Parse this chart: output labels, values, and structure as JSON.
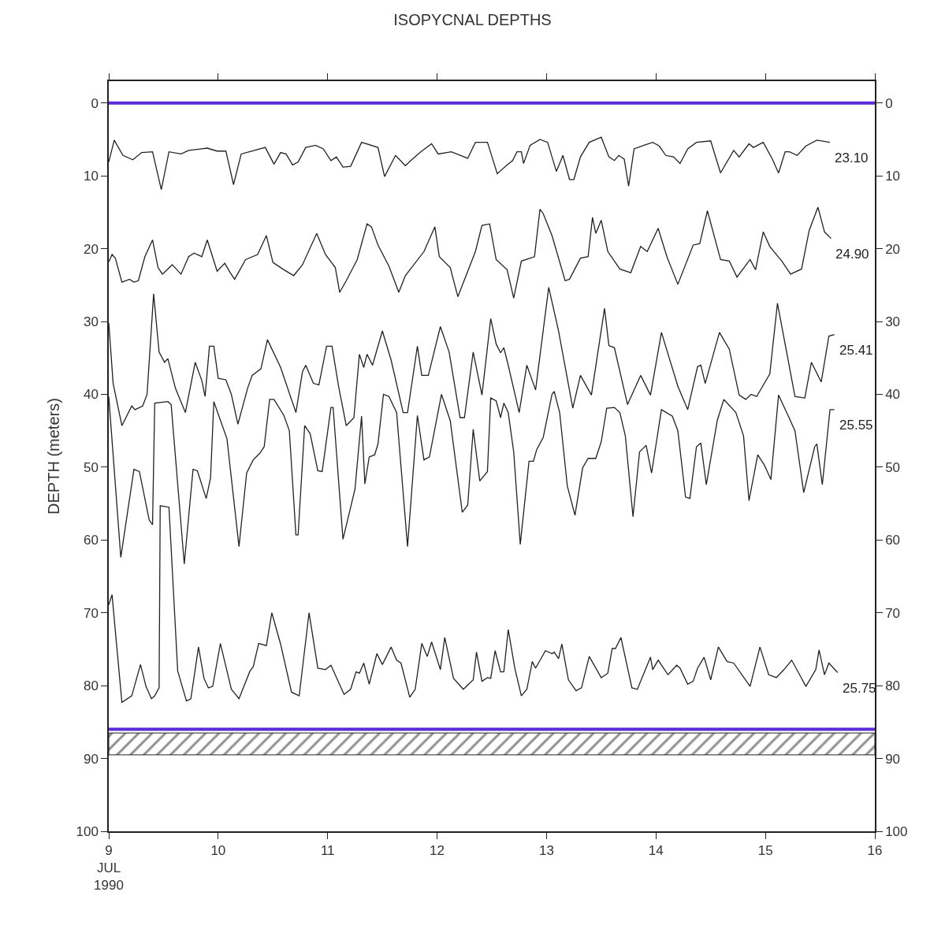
{
  "chart_data": {
    "type": "line",
    "title": "ISOPYCNAL DEPTHS",
    "ylabel": "DEPTH (meters)",
    "xlim": [
      9,
      16
    ],
    "xticks": [
      {
        "value": 9,
        "label": "9\nJUL\n1990"
      },
      10,
      11,
      12,
      13,
      14,
      15,
      16
    ],
    "ylim": [
      100,
      -3
    ],
    "yticks": [
      0,
      10,
      20,
      30,
      40,
      50,
      60,
      70,
      80,
      90,
      100
    ],
    "y2lim": [
      100,
      -3
    ],
    "y2ticks": [
      0,
      10,
      20,
      30,
      40,
      50,
      60,
      70,
      80,
      90,
      100
    ],
    "legend": false,
    "marker": "none",
    "line_style": "solid",
    "ref_lines": [
      {
        "axis": "y",
        "value": 0,
        "color": "#5b2bd6"
      },
      {
        "axis": "y",
        "value": 86,
        "color": "#5b2bd6"
      }
    ],
    "bands": [
      {
        "axis": "y",
        "from": 86.5,
        "to": 89.5,
        "color": "#222222"
      }
    ],
    "series": [
      {
        "name": "23.10",
        "color": "#222222",
        "x": [
          9.0,
          9.05,
          9.13,
          9.22,
          9.3,
          9.4,
          9.48,
          9.55,
          9.66,
          9.73,
          9.9,
          9.99,
          10.07,
          10.14,
          10.21,
          10.33,
          10.43,
          10.51,
          10.57,
          10.62,
          10.68,
          10.73,
          10.8,
          10.89,
          10.96,
          11.03,
          11.08,
          11.14,
          11.21,
          11.31,
          11.46,
          11.52,
          11.62,
          11.71,
          11.76,
          11.85,
          11.95,
          12.01,
          12.13,
          12.28,
          12.35,
          12.46,
          12.55,
          12.64,
          12.69,
          12.73,
          12.77,
          12.79,
          12.85,
          12.94,
          13.01,
          13.09,
          13.15,
          13.21,
          13.25,
          13.31,
          13.39,
          13.5,
          13.57,
          13.62,
          13.66,
          13.71,
          13.75,
          13.8,
          13.89,
          13.97,
          14.03,
          14.09,
          14.16,
          14.22,
          14.29,
          14.37,
          14.5,
          14.59,
          14.71,
          14.76,
          14.85,
          14.89,
          14.98,
          15.06,
          15.12,
          15.18,
          15.22,
          15.29,
          15.37,
          15.47,
          15.59
        ],
        "values": [
          8.1,
          5.1,
          7.2,
          7.8,
          6.8,
          6.7,
          11.9,
          6.7,
          7.0,
          6.5,
          6.2,
          6.6,
          6.6,
          11.2,
          7.0,
          6.5,
          6.1,
          8.4,
          6.8,
          7.0,
          8.5,
          8.1,
          6.1,
          5.8,
          6.3,
          7.9,
          7.4,
          8.8,
          8.7,
          5.4,
          6.1,
          10.1,
          7.2,
          8.6,
          7.9,
          6.7,
          5.6,
          7.0,
          6.7,
          7.6,
          5.4,
          5.4,
          9.7,
          8.5,
          7.9,
          6.7,
          6.7,
          8.3,
          5.8,
          5.0,
          5.4,
          9.4,
          7.2,
          10.5,
          10.5,
          7.4,
          5.4,
          4.7,
          7.4,
          7.9,
          7.2,
          7.7,
          11.4,
          6.3,
          5.8,
          5.4,
          5.9,
          7.2,
          7.4,
          8.3,
          6.3,
          5.4,
          5.2,
          9.6,
          6.5,
          7.4,
          5.6,
          6.1,
          5.4,
          7.6,
          9.6,
          6.7,
          6.7,
          7.2,
          5.9,
          5.1,
          5.4
        ]
      },
      {
        "name": "24.90",
        "color": "#222222",
        "x": [
          9.0,
          9.03,
          9.06,
          9.12,
          9.19,
          9.23,
          9.27,
          9.33,
          9.4,
          9.45,
          9.49,
          9.58,
          9.66,
          9.73,
          9.78,
          9.85,
          9.9,
          9.99,
          10.06,
          10.11,
          10.15,
          10.25,
          10.36,
          10.44,
          10.5,
          10.6,
          10.69,
          10.77,
          10.9,
          10.98,
          11.07,
          11.11,
          11.17,
          11.27,
          11.36,
          11.4,
          11.46,
          11.56,
          11.65,
          11.71,
          11.88,
          11.98,
          12.02,
          12.12,
          12.19,
          12.35,
          12.41,
          12.48,
          12.54,
          12.64,
          12.7,
          12.77,
          12.89,
          12.94,
          12.97,
          13.05,
          13.17,
          13.21,
          13.31,
          13.38,
          13.42,
          13.45,
          13.5,
          13.56,
          13.67,
          13.77,
          13.86,
          13.92,
          14.02,
          14.1,
          14.2,
          14.34,
          14.4,
          14.47,
          14.59,
          14.67,
          14.74,
          14.86,
          14.91,
          14.98,
          15.04,
          15.15,
          15.23,
          15.33,
          15.4,
          15.48,
          15.54,
          15.6
        ],
        "values": [
          21.8,
          20.8,
          21.3,
          24.6,
          24.2,
          24.6,
          24.4,
          21.1,
          18.8,
          22.6,
          23.5,
          22.2,
          23.5,
          21.1,
          20.6,
          21.1,
          18.8,
          23.1,
          22.0,
          23.3,
          24.2,
          21.5,
          20.8,
          18.2,
          21.9,
          22.9,
          23.7,
          22.2,
          17.9,
          20.8,
          22.6,
          26.0,
          24.4,
          21.5,
          16.6,
          17.0,
          19.5,
          22.4,
          26.0,
          23.7,
          20.4,
          17.0,
          21.1,
          22.6,
          26.6,
          20.4,
          16.8,
          16.6,
          21.5,
          22.9,
          26.8,
          21.7,
          21.1,
          14.6,
          15.2,
          18.2,
          24.4,
          24.2,
          21.3,
          21.1,
          15.7,
          17.9,
          16.1,
          20.4,
          22.8,
          23.3,
          19.7,
          20.4,
          17.2,
          21.1,
          24.9,
          19.5,
          19.3,
          14.8,
          21.5,
          21.7,
          23.9,
          21.5,
          22.9,
          17.7,
          19.7,
          21.7,
          23.5,
          22.8,
          17.5,
          14.3,
          17.7,
          18.6
        ]
      },
      {
        "name": "25.41",
        "color": "#222222",
        "x": [
          9.0,
          9.04,
          9.12,
          9.21,
          9.24,
          9.31,
          9.35,
          9.41,
          9.46,
          9.51,
          9.54,
          9.61,
          9.7,
          9.79,
          9.85,
          9.88,
          9.92,
          9.96,
          10.0,
          10.07,
          10.12,
          10.18,
          10.27,
          10.31,
          10.39,
          10.45,
          10.57,
          10.71,
          10.77,
          10.8,
          10.87,
          10.92,
          10.99,
          11.04,
          11.1,
          11.17,
          11.24,
          11.29,
          11.33,
          11.36,
          11.41,
          11.5,
          11.58,
          11.69,
          11.73,
          11.82,
          11.86,
          11.92,
          12.03,
          12.11,
          12.21,
          12.25,
          12.33,
          12.41,
          12.49,
          12.54,
          12.58,
          12.61,
          12.65,
          12.75,
          12.82,
          12.9,
          13.02,
          13.11,
          13.24,
          13.31,
          13.41,
          13.53,
          13.57,
          13.62,
          13.74,
          13.86,
          13.95,
          14.05,
          14.2,
          14.29,
          14.38,
          14.41,
          14.45,
          14.58,
          14.67,
          14.76,
          14.82,
          14.87,
          14.92,
          15.04,
          15.11,
          15.27,
          15.36,
          15.42,
          15.51,
          15.58,
          15.63
        ],
        "values": [
          30.2,
          38.5,
          44.3,
          41.6,
          42.1,
          41.6,
          40.0,
          26.2,
          34.2,
          35.6,
          35.1,
          39.2,
          42.5,
          35.6,
          38.1,
          40.3,
          33.4,
          33.4,
          37.8,
          38.0,
          40.0,
          44.1,
          39.1,
          37.4,
          36.5,
          32.5,
          36.3,
          42.5,
          36.9,
          36.0,
          38.5,
          38.7,
          33.4,
          33.4,
          38.9,
          44.3,
          43.2,
          34.5,
          36.3,
          34.5,
          36.0,
          31.3,
          35.3,
          42.5,
          42.5,
          33.4,
          37.4,
          37.4,
          30.7,
          34.2,
          43.2,
          43.2,
          34.2,
          40.1,
          29.6,
          33.1,
          34.3,
          33.6,
          36.0,
          42.5,
          36.0,
          39.4,
          25.3,
          31.3,
          41.9,
          37.4,
          40.1,
          28.2,
          33.3,
          33.6,
          41.4,
          37.4,
          40.1,
          31.5,
          38.9,
          42.1,
          36.2,
          36.0,
          38.5,
          31.5,
          33.8,
          40.1,
          40.7,
          40.0,
          40.3,
          37.2,
          27.5,
          40.3,
          40.5,
          35.6,
          38.3,
          32.0,
          31.8
        ]
      },
      {
        "name": "25.55",
        "color": "#222222",
        "x": [
          9.0,
          9.11,
          9.23,
          9.28,
          9.37,
          9.4,
          9.42,
          9.54,
          9.57,
          9.69,
          9.77,
          9.81,
          9.89,
          9.93,
          9.96,
          10.08,
          10.19,
          10.26,
          10.32,
          10.38,
          10.42,
          10.47,
          10.51,
          10.6,
          10.65,
          10.71,
          10.73,
          10.79,
          10.84,
          10.91,
          10.95,
          11.03,
          11.05,
          11.14,
          11.25,
          11.31,
          11.34,
          11.38,
          11.43,
          11.46,
          11.51,
          11.56,
          11.63,
          11.73,
          11.82,
          11.88,
          11.93,
          12.04,
          12.12,
          12.23,
          12.28,
          12.33,
          12.39,
          12.46,
          12.49,
          12.54,
          12.58,
          12.61,
          12.65,
          12.7,
          12.76,
          12.84,
          12.88,
          12.91,
          12.97,
          13.05,
          13.07,
          13.12,
          13.19,
          13.26,
          13.33,
          13.38,
          13.45,
          13.5,
          13.55,
          13.62,
          13.67,
          13.72,
          13.79,
          13.85,
          13.91,
          13.96,
          14.05,
          14.15,
          14.2,
          14.27,
          14.31,
          14.37,
          14.41,
          14.46,
          14.56,
          14.62,
          14.73,
          14.8,
          14.85,
          14.93,
          14.99,
          15.05,
          15.12,
          15.21,
          15.27,
          15.35,
          15.45,
          15.47,
          15.52,
          15.59,
          15.63
        ],
        "values": [
          40.3,
          62.4,
          50.3,
          50.6,
          57.3,
          57.9,
          41.2,
          41.0,
          41.4,
          63.3,
          50.3,
          50.5,
          54.3,
          51.5,
          41.0,
          46.1,
          60.9,
          50.8,
          49.0,
          48.1,
          47.2,
          40.7,
          40.7,
          42.9,
          45.0,
          59.3,
          59.3,
          44.3,
          45.4,
          50.5,
          50.6,
          41.8,
          41.8,
          59.9,
          53.0,
          43.0,
          52.3,
          48.6,
          48.3,
          46.8,
          40.0,
          40.3,
          42.5,
          60.9,
          42.9,
          49.0,
          48.6,
          40.0,
          43.6,
          56.2,
          55.2,
          44.8,
          51.9,
          50.6,
          40.5,
          40.9,
          43.2,
          41.2,
          42.5,
          47.9,
          60.6,
          49.2,
          49.2,
          47.6,
          45.9,
          40.0,
          39.6,
          42.5,
          52.6,
          56.6,
          50.1,
          48.8,
          48.8,
          46.5,
          41.9,
          41.8,
          42.5,
          45.7,
          56.8,
          47.9,
          47.0,
          50.8,
          42.1,
          43.0,
          45.0,
          54.1,
          54.3,
          47.2,
          46.7,
          52.4,
          43.6,
          40.7,
          42.5,
          45.7,
          54.6,
          48.3,
          49.7,
          51.7,
          40.1,
          43.0,
          45.0,
          53.5,
          47.2,
          46.8,
          52.4,
          42.1,
          42.1
        ]
      },
      {
        "name": "25.75",
        "color": "#222222",
        "x": [
          9.0,
          9.03,
          9.06,
          9.12,
          9.21,
          9.29,
          9.34,
          9.39,
          9.42,
          9.46,
          9.47,
          9.55,
          9.63,
          9.71,
          9.75,
          9.82,
          9.87,
          9.91,
          9.95,
          10.02,
          10.12,
          10.19,
          10.29,
          10.32,
          10.37,
          10.44,
          10.49,
          10.57,
          10.67,
          10.74,
          10.83,
          10.91,
          10.98,
          11.03,
          11.15,
          11.21,
          11.26,
          11.29,
          11.33,
          11.38,
          11.45,
          11.5,
          11.58,
          11.63,
          11.67,
          11.75,
          11.8,
          11.86,
          11.91,
          11.95,
          12.03,
          12.07,
          12.15,
          12.24,
          12.33,
          12.36,
          12.41,
          12.46,
          12.49,
          12.53,
          12.58,
          12.61,
          12.65,
          12.71,
          12.77,
          12.82,
          12.87,
          12.9,
          12.99,
          13.05,
          13.07,
          13.11,
          13.14,
          13.2,
          13.27,
          13.32,
          13.39,
          13.5,
          13.56,
          13.6,
          13.63,
          13.68,
          13.78,
          13.83,
          13.95,
          13.97,
          14.02,
          14.11,
          14.19,
          14.22,
          14.29,
          14.34,
          14.38,
          14.44,
          14.5,
          14.57,
          14.65,
          14.71,
          14.86,
          14.95,
          15.03,
          15.1,
          15.17,
          15.24,
          15.37,
          15.46,
          15.49,
          15.54,
          15.58,
          15.66
        ],
        "values": [
          68.9,
          67.5,
          72.5,
          82.3,
          81.4,
          77.1,
          80.1,
          81.8,
          81.4,
          80.3,
          55.3,
          55.5,
          78.0,
          82.1,
          81.8,
          74.7,
          79.0,
          80.3,
          80.1,
          74.2,
          80.5,
          81.8,
          78.0,
          77.4,
          74.2,
          74.5,
          70.0,
          74.3,
          80.9,
          81.4,
          70.0,
          77.6,
          77.8,
          77.2,
          81.2,
          80.5,
          78.1,
          78.3,
          76.9,
          79.8,
          75.6,
          77.1,
          74.7,
          76.5,
          76.9,
          81.6,
          80.5,
          74.2,
          76.0,
          74.0,
          77.8,
          73.4,
          79.0,
          80.5,
          79.2,
          75.4,
          79.4,
          78.9,
          79.0,
          75.2,
          78.1,
          78.1,
          72.3,
          77.6,
          81.4,
          80.5,
          76.7,
          77.6,
          75.2,
          75.6,
          75.4,
          76.3,
          74.3,
          79.2,
          80.7,
          80.3,
          76.0,
          78.9,
          78.3,
          74.9,
          74.9,
          73.4,
          80.3,
          80.5,
          76.1,
          77.8,
          76.5,
          78.5,
          77.2,
          77.6,
          79.8,
          79.4,
          77.6,
          76.1,
          79.2,
          74.7,
          76.7,
          76.9,
          80.1,
          74.7,
          78.5,
          78.9,
          77.8,
          76.5,
          80.1,
          77.8,
          75.1,
          78.5,
          76.9,
          78.2
        ]
      }
    ]
  }
}
